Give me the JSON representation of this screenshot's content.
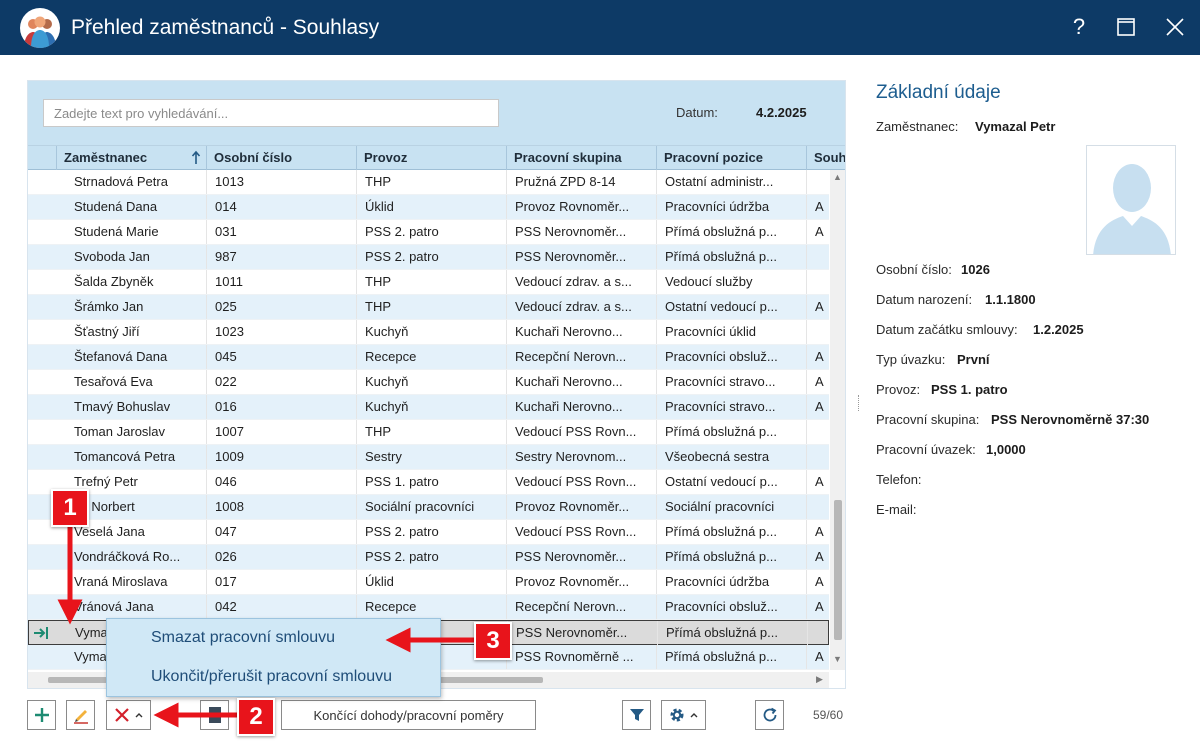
{
  "window": {
    "title": "Přehled zaměstnanců - Souhlasy",
    "help_label": "?",
    "app_icon": "people-group-icon"
  },
  "search": {
    "placeholder": "Zadejte text pro vyhledávání...",
    "datum_label": "Datum:",
    "datum_value": "4.2.2025"
  },
  "grid": {
    "columns": [
      "Zaměstnanec",
      "Osobní číslo",
      "Provoz",
      "Pracovní skupina",
      "Pracovní pozice",
      "Souh"
    ],
    "sort_column": "Zaměstnanec",
    "sort_direction": "ascending",
    "rows": [
      {
        "name": "Strnadová Petra",
        "number": "1013",
        "provoz": "THP",
        "skupina": "Pružná ZPD 8-14",
        "pozice": "Ostatní administr...",
        "souh": ""
      },
      {
        "name": "Studená Dana",
        "number": "014",
        "provoz": "Úklid",
        "skupina": "Provoz Rovnoměr...",
        "pozice": "Pracovníci údržba",
        "souh": "A"
      },
      {
        "name": "Studená Marie",
        "number": "031",
        "provoz": "PSS 2. patro",
        "skupina": "PSS Nerovnoměr...",
        "pozice": "Přímá obslužná p...",
        "souh": "A"
      },
      {
        "name": "Svoboda Jan",
        "number": "987",
        "provoz": "PSS 2. patro",
        "skupina": "PSS Nerovnoměr...",
        "pozice": "Přímá obslužná p...",
        "souh": ""
      },
      {
        "name": "Šalda Zbyněk",
        "number": "1011",
        "provoz": "THP",
        "skupina": "Vedoucí zdrav. a s...",
        "pozice": "Vedoucí služby",
        "souh": ""
      },
      {
        "name": "Šrámko Jan",
        "number": "025",
        "provoz": "THP",
        "skupina": "Vedoucí zdrav. a s...",
        "pozice": "Ostatní vedoucí p...",
        "souh": "A"
      },
      {
        "name": "Šťastný Jiří",
        "number": "1023",
        "provoz": "Kuchyň",
        "skupina": "Kuchaři Nerovno...",
        "pozice": "Pracovníci úklid",
        "souh": ""
      },
      {
        "name": "Štefanová Dana",
        "number": "045",
        "provoz": "Recepce",
        "skupina": "Recepční Nerovn...",
        "pozice": "Pracovníci obsluž...",
        "souh": "A"
      },
      {
        "name": "Tesařová Eva",
        "number": "022",
        "provoz": "Kuchyň",
        "skupina": "Kuchaři Nerovno...",
        "pozice": "Pracovníci stravo...",
        "souh": "A"
      },
      {
        "name": "Tmavý Bohuslav",
        "number": "016",
        "provoz": "Kuchyň",
        "skupina": "Kuchaři Nerovno...",
        "pozice": "Pracovníci stravo...",
        "souh": "A"
      },
      {
        "name": "Toman Jaroslav",
        "number": "1007",
        "provoz": "THP",
        "skupina": "Vedoucí PSS Rovn...",
        "pozice": "Přímá obslužná p...",
        "souh": ""
      },
      {
        "name": "Tomancová Petra",
        "number": "1009",
        "provoz": "Sestry",
        "skupina": "Sestry Nerovnom...",
        "pozice": "Všeobecná sestra",
        "souh": ""
      },
      {
        "name": "Trefný Petr",
        "number": "046",
        "provoz": "PSS 1. patro",
        "skupina": "Vedoucí PSS Rovn...",
        "pozice": "Ostatní vedoucí p...",
        "souh": "A"
      },
      {
        "name": "ch Norbert",
        "number": "1008",
        "provoz": "Sociální pracovníci",
        "skupina": "Provoz Rovnoměr...",
        "pozice": "Sociální pracovníci",
        "souh": ""
      },
      {
        "name": "Veselá Jana",
        "number": "047",
        "provoz": "PSS 2. patro",
        "skupina": "Vedoucí PSS Rovn...",
        "pozice": "Přímá obslužná p...",
        "souh": "A"
      },
      {
        "name": "Vondráčková Ro...",
        "number": "026",
        "provoz": "PSS 2. patro",
        "skupina": "PSS Nerovnoměr...",
        "pozice": "Přímá obslužná p...",
        "souh": "A"
      },
      {
        "name": "Vraná Miroslava",
        "number": "017",
        "provoz": "Úklid",
        "skupina": "Provoz Rovnoměr...",
        "pozice": "Pracovníci údržba",
        "souh": "A"
      },
      {
        "name": "Vránová Jana",
        "number": "042",
        "provoz": "Recepce",
        "skupina": "Recepční Nerovn...",
        "pozice": "Pracovníci obsluž...",
        "souh": "A"
      },
      {
        "name": "Vyma",
        "number": "",
        "provoz": "",
        "skupina": "PSS Nerovnoměr...",
        "pozice": "Přímá obslužná p...",
        "souh": ""
      },
      {
        "name": "Vyma",
        "number": "",
        "provoz": "",
        "skupina": "PSS Rovnoměrně ...",
        "pozice": "Přímá obslužná p...",
        "souh": "A"
      }
    ],
    "selected_row_index": 18,
    "selected_marker_icon": "arrow-right-icon"
  },
  "detail": {
    "title": "Základní údaje",
    "employee_label": "Zaměstnanec:",
    "employee_value": "Vymazal Petr",
    "photo_icon": "person-silhouette-icon",
    "fields": [
      {
        "label": "Osobní číslo:",
        "value": "1026"
      },
      {
        "label": "Datum narození:",
        "value": "1.1.1800"
      },
      {
        "label": "Datum začátku smlouvy:",
        "value": "1.2.2025"
      },
      {
        "label": "Typ úvazku:",
        "value": "První"
      },
      {
        "label": "Provoz:",
        "value": "PSS 1. patro"
      },
      {
        "label": "Pracovní skupina:",
        "value": "PSS Nerovnoměrně 37:30"
      },
      {
        "label": "Pracovní úvazek:",
        "value": "1,0000"
      },
      {
        "label": "Telefon:",
        "value": ""
      },
      {
        "label": "E-mail:",
        "value": ""
      }
    ]
  },
  "toolbar": {
    "add_icon": "plus-icon",
    "edit_icon": "pencil-icon",
    "delete_icon": "x-icon",
    "export_icon": "document-icon",
    "ending_contracts_label": "Končící dohody/pracovní poměry",
    "filter_icon": "filter-icon",
    "settings_icon": "gear-icon",
    "refresh_icon": "refresh-icon",
    "counter": "59/60"
  },
  "context_menu": {
    "items": [
      "Smazat pracovní smlouvu",
      "Ukončit/přerušit pracovní smlouvu"
    ]
  },
  "annotations": {
    "badges": [
      "1",
      "2",
      "3"
    ],
    "color": "#e8141b"
  },
  "colors": {
    "titlebar": "#0d3a66",
    "grid_header": "#c8e2f2",
    "row_alt": "#e4f1fa",
    "accent_green": "#1d8b72",
    "delete_red": "#d3202b",
    "title_blue": "#1d5d8f"
  }
}
